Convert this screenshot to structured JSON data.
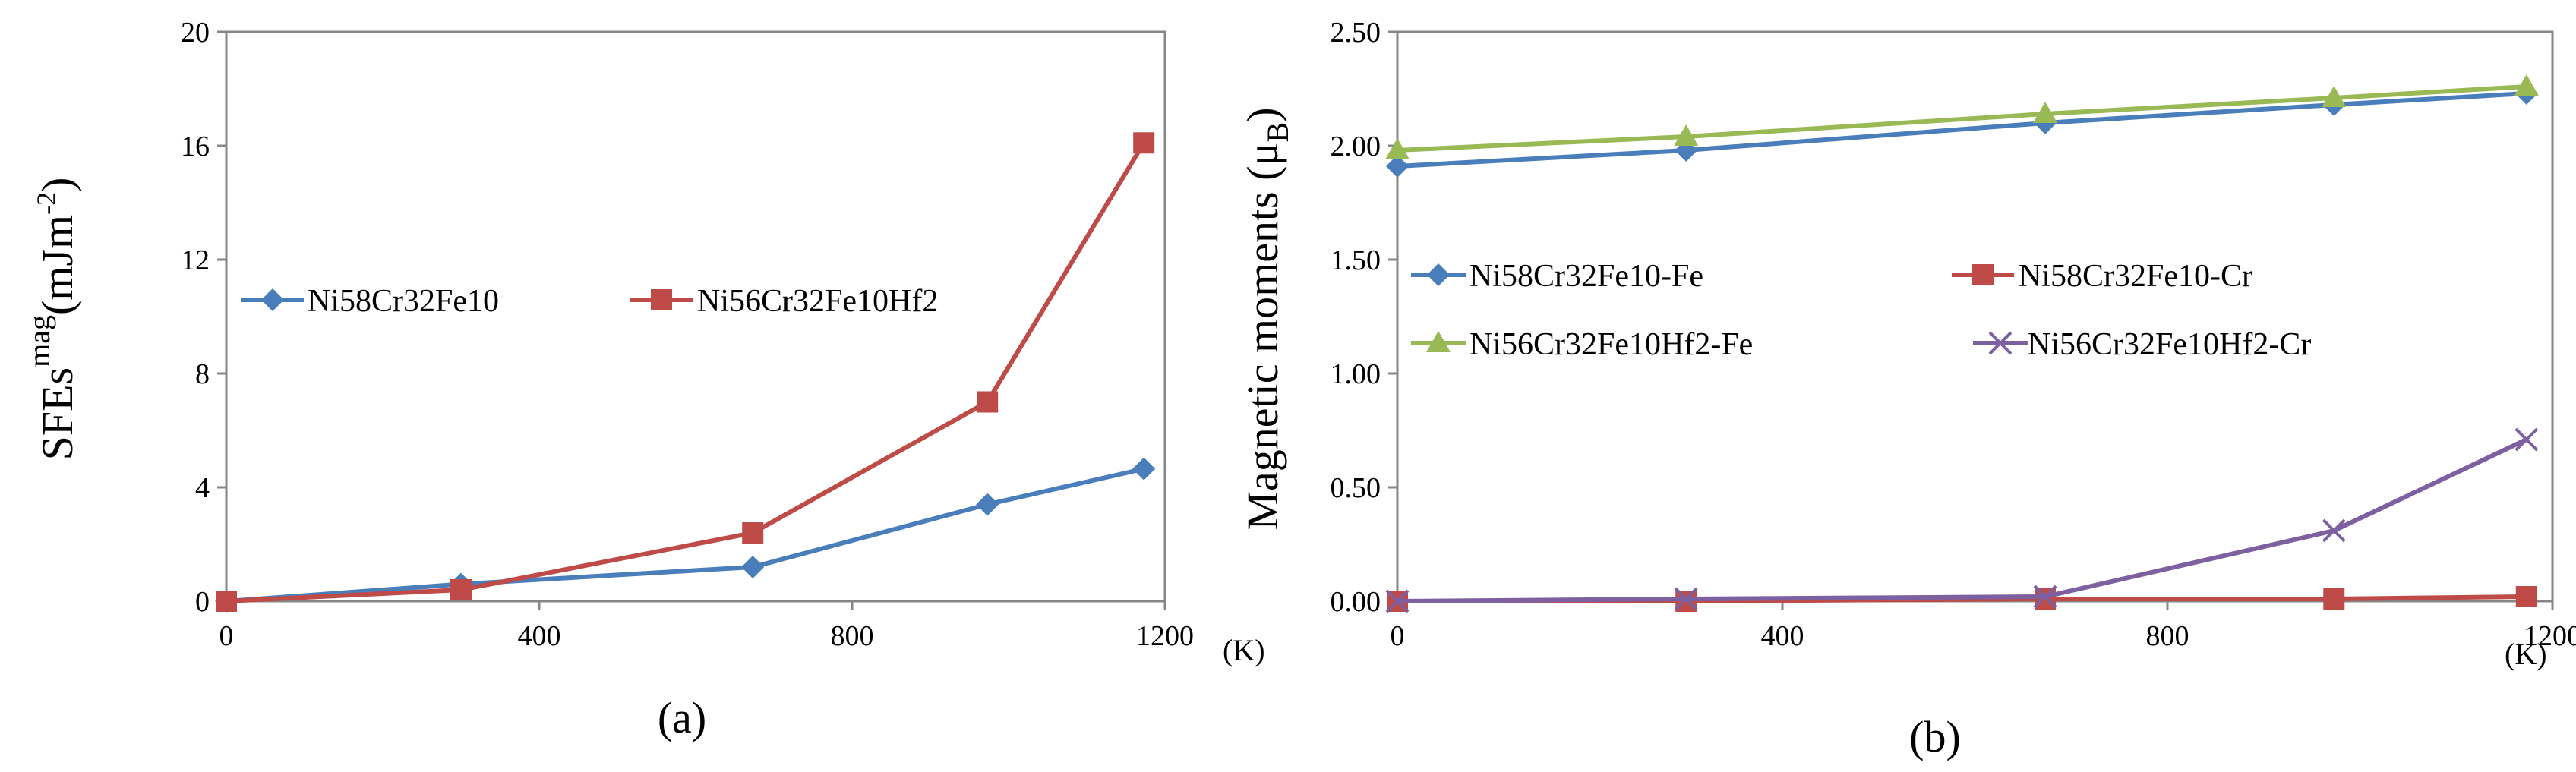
{
  "colors": {
    "blue": "#4a7ebb",
    "red": "#be4b48",
    "green": "#98b954",
    "purple": "#7d60a0",
    "axis": "#868686",
    "frame": "#868686"
  },
  "chart_data": [
    {
      "type": "line",
      "panel_label": "(a)",
      "x_unit": "(K)",
      "ylabel_main": "SFEs",
      "ylabel_super": "mag",
      "ylabel_units": "(mJm",
      "ylabel_units_super": "-2",
      "ylabel_units_close": ")",
      "xlim": [
        0,
        1200
      ],
      "ylim": [
        0,
        20
      ],
      "xticks": [
        0,
        400,
        800,
        1200
      ],
      "yticks": [
        0,
        4,
        8,
        12,
        16,
        20
      ],
      "grid": false,
      "legend_position": "middle-left, single row",
      "series": [
        {
          "name": "Ni58Cr32Fe10",
          "color": "#4a7ebb",
          "marker": "diamond",
          "x": [
            0,
            300,
            673,
            973,
            1173
          ],
          "y": [
            0,
            0.6,
            1.2,
            3.4,
            4.65
          ]
        },
        {
          "name": "Ni56Cr32Fe10Hf2",
          "color": "#be4b48",
          "marker": "square",
          "x": [
            0,
            300,
            673,
            973,
            1173
          ],
          "y": [
            0,
            0.4,
            2.4,
            7.0,
            16.1
          ]
        }
      ]
    },
    {
      "type": "line",
      "panel_label": "(b)",
      "x_unit": "(K)",
      "ylabel_main": "Magnetic moments (μ",
      "ylabel_sub": "B",
      "ylabel_close": ")",
      "xlim": [
        0,
        1200
      ],
      "ylim": [
        0,
        2.5
      ],
      "xticks": [
        0,
        400,
        800,
        1200
      ],
      "yticks": [
        0,
        0.5,
        1.0,
        1.5,
        2.0,
        2.5
      ],
      "ytick_labels": [
        "0.00",
        "0.50",
        "1.00",
        "1.50",
        "2.00",
        "2.50"
      ],
      "grid": false,
      "legend_position": "middle, two columns",
      "series": [
        {
          "name": "Ni58Cr32Fe10-Fe",
          "color": "#4a7ebb",
          "marker": "diamond",
          "x": [
            0,
            300,
            673,
            973,
            1173
          ],
          "y": [
            1.91,
            1.98,
            2.1,
            2.18,
            2.23
          ]
        },
        {
          "name": "Ni58Cr32Fe10-Cr",
          "color": "#be4b48",
          "marker": "square",
          "x": [
            0,
            300,
            673,
            973,
            1173
          ],
          "y": [
            0.0,
            0.0,
            0.01,
            0.01,
            0.02
          ]
        },
        {
          "name": "Ni56Cr32Fe10Hf2-Fe",
          "color": "#98b954",
          "marker": "triangle",
          "x": [
            0,
            300,
            673,
            973,
            1173
          ],
          "y": [
            1.98,
            2.04,
            2.14,
            2.21,
            2.26
          ]
        },
        {
          "name": "Ni56Cr32Fe10Hf2-Cr",
          "color": "#7d60a0",
          "marker": "x",
          "x": [
            0,
            300,
            673,
            973,
            1173
          ],
          "y": [
            0.0,
            0.01,
            0.02,
            0.31,
            0.71
          ]
        }
      ]
    }
  ]
}
